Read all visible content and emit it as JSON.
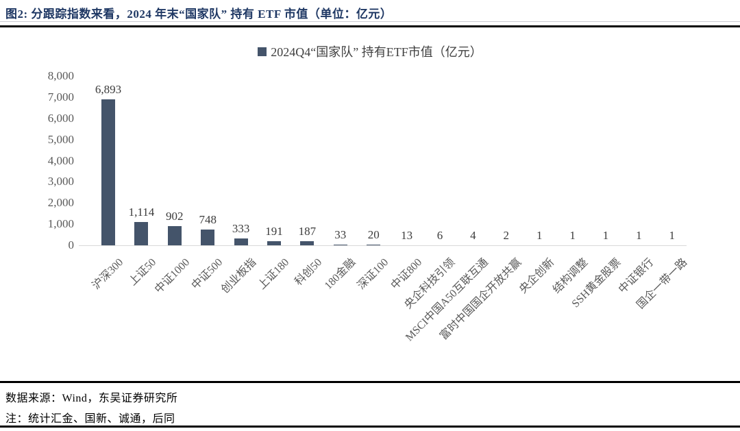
{
  "header": {
    "title": "图2:  分跟踪指数来看，2024 年末“国家队” 持有 ETF 市值（单位：亿元）"
  },
  "chart_data": {
    "type": "bar",
    "legend": "2024Q4“国家队” 持有ETF市值（亿元）",
    "legend_position": "top-center",
    "grid": false,
    "categories": [
      "沪深300",
      "上证50",
      "中证1000",
      "中证500",
      "创业板指",
      "上证180",
      "科创50",
      "180金融",
      "深证100",
      "中证800",
      "央企科技引领",
      "MSCI中国A50互联互通",
      "富时中国国企开放共赢",
      "央企创新",
      "结构调整",
      "SSH黄金股票",
      "中证银行",
      "国企一带一路"
    ],
    "values": [
      6893,
      1114,
      902,
      748,
      333,
      191,
      187,
      33,
      20,
      13,
      6,
      4,
      2,
      1,
      1,
      1,
      1,
      1
    ],
    "value_labels": [
      "6,893",
      "1,114",
      "902",
      "748",
      "333",
      "191",
      "187",
      "33",
      "20",
      "13",
      "6",
      "4",
      "2",
      "1",
      "1",
      "1",
      "1",
      "1"
    ],
    "xlabel": "",
    "ylabel": "",
    "ylim": [
      0,
      8000
    ],
    "ytick_values": [
      0,
      1000,
      2000,
      3000,
      4000,
      5000,
      6000,
      7000,
      8000
    ],
    "ytick_labels": [
      "0",
      "1,000",
      "2,000",
      "3,000",
      "4,000",
      "5,000",
      "6,000",
      "7,000",
      "8,000"
    ],
    "bar_color": "#44546A",
    "axis_line_color": "#D9D9D9"
  },
  "footer": {
    "source": "数据来源：Wind，东吴证券研究所",
    "note": "注：统计汇金、国新、诚通，后同"
  },
  "colors": {
    "title": "#1F3864",
    "bar": "#44546A",
    "axis_line": "#D9D9D9",
    "tick_text": "#595959",
    "rule": "#000000"
  }
}
